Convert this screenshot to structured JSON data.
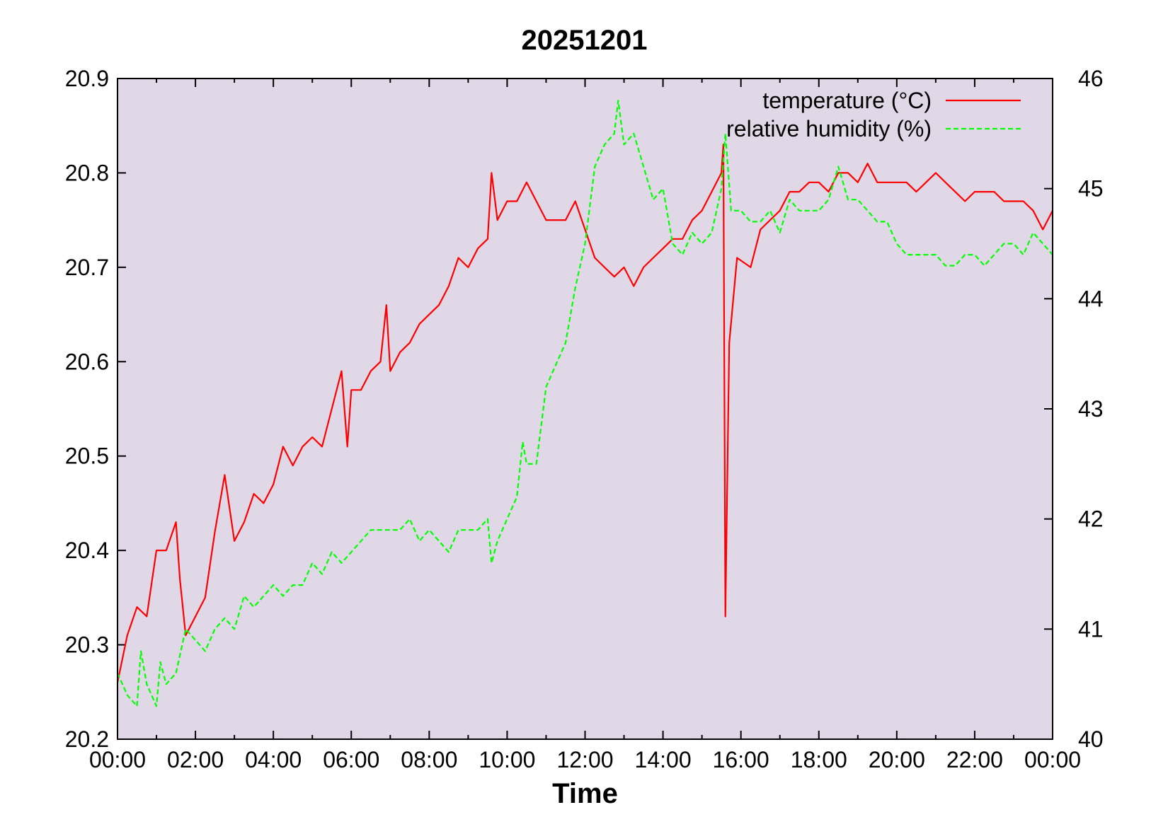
{
  "chart_data": {
    "type": "line",
    "title": "20251201",
    "xlabel": "Time",
    "ylabel": "",
    "y2label": "",
    "background_color": "#e0d8e6",
    "xlim_hours": [
      0,
      24
    ],
    "ylim": [
      20.2,
      20.9
    ],
    "y2lim": [
      40,
      46
    ],
    "x_ticks": [
      "00:00",
      "02:00",
      "04:00",
      "06:00",
      "08:00",
      "10:00",
      "12:00",
      "14:00",
      "16:00",
      "18:00",
      "20:00",
      "22:00",
      "00:00"
    ],
    "y_ticks": [
      "20.2",
      "20.3",
      "20.4",
      "20.5",
      "20.6",
      "20.7",
      "20.8",
      "20.9"
    ],
    "y2_ticks": [
      "40",
      "41",
      "42",
      "43",
      "44",
      "45",
      "46"
    ],
    "legend_position": "top-right",
    "series": [
      {
        "name": "temperature (°C)",
        "axis": "left",
        "color": "#ff0000",
        "dash": "solid",
        "x": [
          0.0,
          0.25,
          0.5,
          0.75,
          1.0,
          1.25,
          1.5,
          1.6,
          1.75,
          2.0,
          2.25,
          2.5,
          2.75,
          3.0,
          3.25,
          3.5,
          3.75,
          4.0,
          4.25,
          4.5,
          4.75,
          5.0,
          5.25,
          5.5,
          5.75,
          5.9,
          6.0,
          6.25,
          6.5,
          6.75,
          6.9,
          7.0,
          7.25,
          7.5,
          7.75,
          8.0,
          8.25,
          8.5,
          8.75,
          9.0,
          9.25,
          9.5,
          9.6,
          9.75,
          10.0,
          10.25,
          10.5,
          10.75,
          11.0,
          11.25,
          11.5,
          11.75,
          12.0,
          12.25,
          12.5,
          12.75,
          13.0,
          13.25,
          13.5,
          13.75,
          14.0,
          14.25,
          14.5,
          14.75,
          15.0,
          15.25,
          15.5,
          15.55,
          15.6,
          15.7,
          15.9,
          16.25,
          16.5,
          16.75,
          17.0,
          17.25,
          17.5,
          17.75,
          18.0,
          18.25,
          18.5,
          18.75,
          19.0,
          19.25,
          19.5,
          19.75,
          20.0,
          20.25,
          20.5,
          20.75,
          21.0,
          21.25,
          21.5,
          21.75,
          22.0,
          22.25,
          22.5,
          22.75,
          23.0,
          23.25,
          23.5,
          23.75,
          24.0
        ],
        "values": [
          20.26,
          20.31,
          20.34,
          20.33,
          20.4,
          20.4,
          20.43,
          20.37,
          20.31,
          20.33,
          20.35,
          20.42,
          20.48,
          20.41,
          20.43,
          20.46,
          20.45,
          20.47,
          20.51,
          20.49,
          20.51,
          20.52,
          20.51,
          20.55,
          20.59,
          20.51,
          20.57,
          20.57,
          20.59,
          20.6,
          20.66,
          20.59,
          20.61,
          20.62,
          20.64,
          20.65,
          20.66,
          20.68,
          20.71,
          20.7,
          20.72,
          20.73,
          20.8,
          20.75,
          20.77,
          20.77,
          20.79,
          20.77,
          20.75,
          20.75,
          20.75,
          20.77,
          20.74,
          20.71,
          20.7,
          20.69,
          20.7,
          20.68,
          20.7,
          20.71,
          20.72,
          20.73,
          20.73,
          20.75,
          20.76,
          20.78,
          20.8,
          20.83,
          20.33,
          20.62,
          20.71,
          20.7,
          20.74,
          20.75,
          20.76,
          20.78,
          20.78,
          20.79,
          20.79,
          20.78,
          20.8,
          20.8,
          20.79,
          20.81,
          20.79,
          20.79,
          20.79,
          20.79,
          20.78,
          20.79,
          20.8,
          20.79,
          20.78,
          20.77,
          20.78,
          20.78,
          20.78,
          20.77,
          20.77,
          20.77,
          20.76,
          20.74,
          20.76
        ]
      },
      {
        "name": "relative humidity (%)",
        "axis": "right",
        "color": "#00ff00",
        "dash": "dashed",
        "x": [
          0.0,
          0.25,
          0.5,
          0.6,
          0.75,
          1.0,
          1.1,
          1.25,
          1.5,
          1.75,
          2.0,
          2.25,
          2.5,
          2.75,
          3.0,
          3.25,
          3.5,
          3.75,
          4.0,
          4.25,
          4.5,
          4.75,
          5.0,
          5.25,
          5.5,
          5.75,
          6.0,
          6.25,
          6.5,
          6.75,
          7.0,
          7.25,
          7.5,
          7.75,
          8.0,
          8.25,
          8.5,
          8.75,
          9.0,
          9.25,
          9.5,
          9.6,
          9.75,
          10.0,
          10.25,
          10.4,
          10.5,
          10.75,
          11.0,
          11.25,
          11.5,
          11.75,
          12.0,
          12.25,
          12.5,
          12.75,
          12.85,
          13.0,
          13.25,
          13.5,
          13.75,
          14.0,
          14.25,
          14.5,
          14.75,
          15.0,
          15.25,
          15.5,
          15.6,
          15.75,
          16.0,
          16.25,
          16.5,
          16.75,
          17.0,
          17.25,
          17.5,
          17.75,
          18.0,
          18.25,
          18.5,
          18.75,
          19.0,
          19.25,
          19.5,
          19.75,
          20.0,
          20.25,
          20.5,
          20.75,
          21.0,
          21.25,
          21.5,
          21.75,
          22.0,
          22.25,
          22.5,
          22.75,
          23.0,
          23.25,
          23.5,
          23.75,
          24.0
        ],
        "values": [
          40.6,
          40.4,
          40.3,
          40.8,
          40.5,
          40.3,
          40.7,
          40.5,
          40.6,
          41.0,
          40.9,
          40.8,
          41.0,
          41.1,
          41.0,
          41.3,
          41.2,
          41.3,
          41.4,
          41.3,
          41.4,
          41.4,
          41.6,
          41.5,
          41.7,
          41.6,
          41.7,
          41.8,
          41.9,
          41.9,
          41.9,
          41.9,
          42.0,
          41.8,
          41.9,
          41.8,
          41.7,
          41.9,
          41.9,
          41.9,
          42.0,
          41.6,
          41.8,
          42.0,
          42.2,
          42.7,
          42.5,
          42.5,
          43.2,
          43.4,
          43.6,
          44.1,
          44.5,
          45.2,
          45.4,
          45.5,
          45.8,
          45.4,
          45.5,
          45.2,
          44.9,
          45.0,
          44.5,
          44.4,
          44.6,
          44.5,
          44.6,
          45.0,
          45.5,
          44.8,
          44.8,
          44.7,
          44.7,
          44.8,
          44.6,
          44.9,
          44.8,
          44.8,
          44.8,
          44.9,
          45.2,
          44.9,
          44.9,
          44.8,
          44.7,
          44.7,
          44.5,
          44.4,
          44.4,
          44.4,
          44.4,
          44.3,
          44.3,
          44.4,
          44.4,
          44.3,
          44.4,
          44.5,
          44.5,
          44.4,
          44.6,
          44.5,
          44.4
        ]
      }
    ]
  }
}
